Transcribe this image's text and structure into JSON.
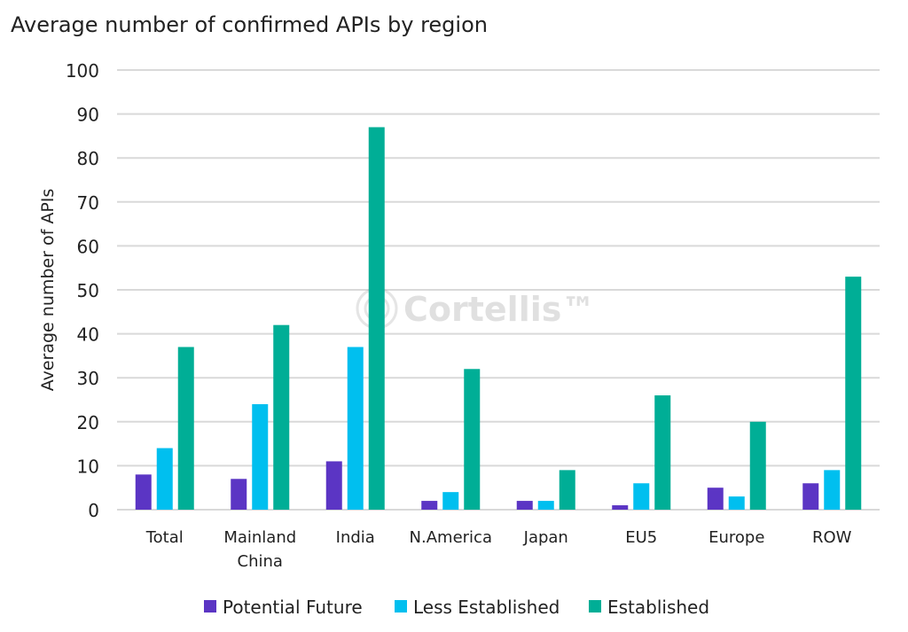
{
  "chart_data": {
    "type": "bar",
    "title": "Average number of confirmed APIs by region",
    "xlabel": "",
    "ylabel": "Average number of APIs",
    "ylim": [
      0,
      100
    ],
    "yticks": [
      0,
      10,
      20,
      30,
      40,
      50,
      60,
      70,
      80,
      90,
      100
    ],
    "grid": true,
    "legend_position": "bottom",
    "categories": [
      "Total",
      "Mainland China",
      "India",
      "N.America",
      "Japan",
      "EU5",
      "Europe",
      "ROW"
    ],
    "series": [
      {
        "name": "Potential Future",
        "color": "#5B35C4",
        "values": [
          8,
          7,
          11,
          2,
          2,
          1,
          5,
          6
        ]
      },
      {
        "name": "Less Established",
        "color": "#00BFEF",
        "values": [
          14,
          24,
          37,
          4,
          2,
          6,
          3,
          9
        ]
      },
      {
        "name": "Established",
        "color": "#00AE96",
        "values": [
          37,
          42,
          87,
          32,
          9,
          26,
          20,
          53
        ]
      }
    ],
    "watermark": "Cortellis™"
  }
}
